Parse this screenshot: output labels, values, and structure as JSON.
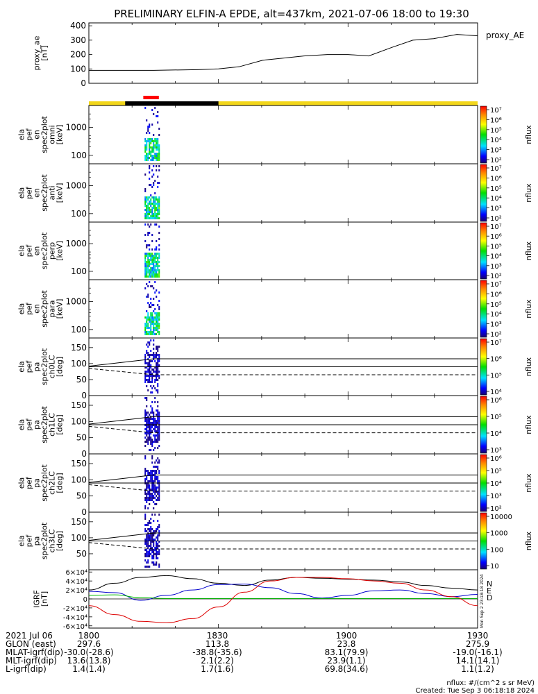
{
  "title": "PRELIMINARY ELFIN-A EPDE, alt=437km, 2021-07-06 18:00 to 19:30",
  "colors": {
    "ae_line": "#000000",
    "sunlit": "#f2d61a",
    "shadow": "#000000",
    "science": "#ff0000",
    "grf_x": "#000000",
    "grf_y": "#0000cc",
    "grf_z": "#00bb00",
    "grf_d": "#dd0000"
  },
  "chart_data": [
    {
      "type": "line",
      "panel": "proxy_ae",
      "ylabel_lines": [
        "proxy_ae",
        "[nT]"
      ],
      "legend": "proxy_AE",
      "ylim": [
        0,
        420
      ],
      "yticks": [
        0,
        100,
        200,
        300,
        400
      ],
      "x": [
        18.0,
        18.25,
        18.42,
        18.5,
        18.58,
        18.67,
        18.75,
        18.83,
        18.92,
        19.0,
        19.08,
        19.17,
        19.25,
        19.33,
        19.42,
        19.5
      ],
      "values": [
        90,
        90,
        95,
        100,
        115,
        160,
        175,
        190,
        200,
        200,
        190,
        250,
        300,
        310,
        340,
        330
      ]
    },
    {
      "type": "heatmap",
      "panel": "spec_omni",
      "ylabel_lines": [
        "ela",
        "pef",
        "en",
        "spec2plot",
        "omni",
        "[keV]"
      ],
      "yticks": [
        "100",
        "1000"
      ],
      "colorbar": {
        "label": "nflux",
        "ticks": [
          "10²",
          "10³",
          "10⁴",
          "10⁵",
          "10⁶",
          "10⁷"
        ]
      }
    },
    {
      "type": "heatmap",
      "panel": "spec_anti",
      "ylabel_lines": [
        "ela",
        "pef",
        "en",
        "spec2plot",
        "anti",
        "[keV]"
      ],
      "yticks": [
        "100",
        "1000"
      ],
      "colorbar": {
        "label": "nflux",
        "ticks": [
          "10²",
          "10³",
          "10⁴",
          "10⁵",
          "10⁶",
          "10⁷"
        ]
      }
    },
    {
      "type": "heatmap",
      "panel": "spec_perp",
      "ylabel_lines": [
        "ela",
        "pef",
        "en",
        "spec2plot",
        "perp",
        "[keV]"
      ],
      "yticks": [
        "100",
        "1000"
      ],
      "colorbar": {
        "label": "nflux",
        "ticks": [
          "10²",
          "10³",
          "10⁴",
          "10⁵",
          "10⁶",
          "10⁷"
        ]
      }
    },
    {
      "type": "heatmap",
      "panel": "spec_para",
      "ylabel_lines": [
        "ela",
        "pef",
        "en",
        "spec2plot",
        "para",
        "[keV]"
      ],
      "yticks": [
        "100",
        "1000"
      ],
      "colorbar": {
        "label": "nflux",
        "ticks": [
          "10²",
          "10³",
          "10⁴",
          "10⁵",
          "10⁶",
          "10⁷"
        ]
      }
    },
    {
      "type": "heatmap",
      "panel": "pa_ch0LC",
      "ylabel_lines": [
        "ela",
        "pef",
        "pa",
        "spec2plot",
        "ch0LC",
        "[deg]"
      ],
      "yticks": [
        "0",
        "50",
        "100",
        "150"
      ],
      "colorbar": {
        "label": "nflux",
        "ticks": [
          "10⁴",
          "10⁵",
          "10⁶",
          "10⁷"
        ]
      }
    },
    {
      "type": "heatmap",
      "panel": "pa_ch1LC",
      "ylabel_lines": [
        "ela",
        "pef",
        "pa",
        "spec2plot",
        "ch1LC",
        "[deg]"
      ],
      "yticks": [
        "0",
        "50",
        "100",
        "150"
      ],
      "colorbar": {
        "label": "nflux",
        "ticks": [
          "10³",
          "10⁴",
          "10⁵",
          "10⁶"
        ]
      }
    },
    {
      "type": "heatmap",
      "panel": "pa_ch2LC",
      "ylabel_lines": [
        "ela",
        "pef",
        "pa",
        "spec2plot",
        "ch2LC",
        "[deg]"
      ],
      "yticks": [
        "0",
        "50",
        "100",
        "150"
      ],
      "colorbar": {
        "label": "nflux",
        "ticks": [
          "10²",
          "10³",
          "10⁴",
          "10⁵",
          "10⁶"
        ]
      }
    },
    {
      "type": "heatmap",
      "panel": "pa_ch3LC",
      "ylabel_lines": [
        "ela",
        "pef",
        "pa",
        "spec2plot",
        "ch3LC",
        "[deg]"
      ],
      "yticks": [
        "50",
        "100",
        "150"
      ],
      "colorbar": {
        "label": "nflux",
        "ticks": [
          "10",
          "100",
          "1000",
          "10000"
        ]
      }
    },
    {
      "type": "line",
      "panel": "grf",
      "ylabel_lines": [
        "IGRF",
        "[nT]"
      ],
      "yticks": [
        "-6×10⁴",
        "-4×10⁴",
        "-2×10⁴",
        "0",
        "2×10⁴",
        "4×10⁴",
        "6×10⁴"
      ],
      "ylim": [
        -65000,
        65000
      ],
      "legend": [
        "N",
        "E",
        "D"
      ],
      "x": [
        18.0,
        18.1,
        18.2,
        18.3,
        18.4,
        18.5,
        18.6,
        18.7,
        18.8,
        18.9,
        19.0,
        19.1,
        19.2,
        19.3,
        19.4,
        19.5
      ],
      "series": [
        {
          "values": [
            20000,
            35000,
            48000,
            52000,
            45000,
            35000,
            30000,
            42000,
            48000,
            46000,
            44000,
            42000,
            38000,
            30000,
            24000,
            20000
          ]
        },
        {
          "values": [
            17000,
            14000,
            -3000,
            8000,
            20000,
            32000,
            33000,
            25000,
            12000,
            2000,
            8000,
            18000,
            20000,
            12000,
            5000,
            10000
          ]
        },
        {
          "values": [
            8000,
            9000,
            3000,
            1000,
            1000,
            1000,
            1000,
            1000,
            1000,
            1000,
            1000,
            1000,
            1000,
            1000,
            1000,
            1000
          ]
        },
        {
          "values": [
            -15000,
            -35000,
            -50000,
            -53000,
            -44000,
            -18000,
            15000,
            40000,
            48000,
            48000,
            45000,
            40000,
            35000,
            20000,
            5000,
            -15000
          ]
        }
      ]
    }
  ],
  "orbit": {
    "rows": [
      {
        "label": "2021 Jul 06",
        "values": [
          "1800",
          "1830",
          "1900",
          "1930"
        ]
      },
      {
        "label": "GLON (east)",
        "values": [
          "297.6",
          "113.8",
          "23.8",
          "275.9"
        ]
      },
      {
        "label": "MLAT-igrf(dip)",
        "values": [
          "-30.0(-28.6)",
          "-38.8(-35.6)",
          "83.1(79.9)",
          "-19.0(-16.1)"
        ]
      },
      {
        "label": "MLT-igrf(dip)",
        "values": [
          "13.6(13.8)",
          "2.1(2.2)",
          "23.9(1.1)",
          "14.1(14.1)"
        ]
      },
      {
        "label": "L-igrf(dip)",
        "values": [
          "1.4(1.4)",
          "1.7(1.6)",
          "69.8(34.6)",
          "1.1(1.2)"
        ]
      }
    ]
  },
  "footer": {
    "units": "nflux: #/(cm^2 s sr MeV)",
    "created": "Created: Tue Sep  3 06:18:18 2024",
    "side_stamp": "Mon Sep  2 23:18:18 2024"
  }
}
